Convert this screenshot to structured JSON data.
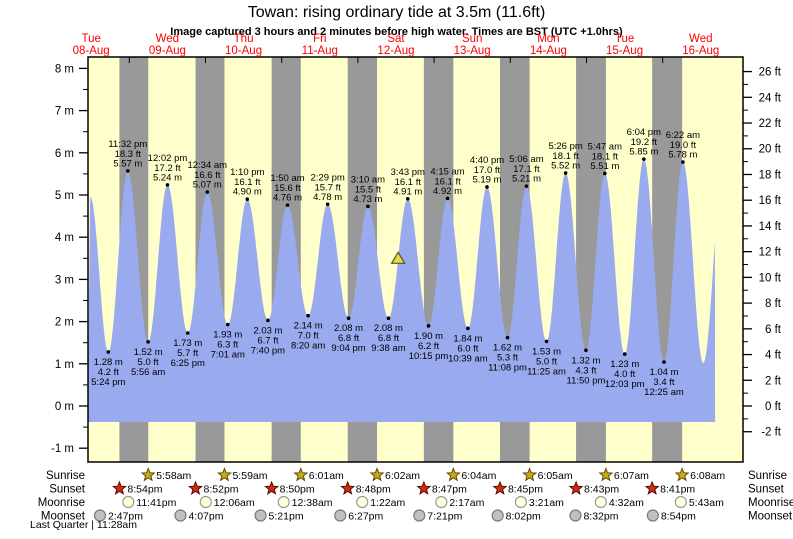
{
  "title": "Towan: rising  ordinary tide at 3.5m (11.6ft)",
  "subtitle": "Image captured 3 hours and 2 minutes before high water. Times are BST (UTC +1.0hrs)",
  "days": [
    {
      "day": "Tue",
      "date": "08-Aug"
    },
    {
      "day": "Wed",
      "date": "09-Aug"
    },
    {
      "day": "Thu",
      "date": "10-Aug"
    },
    {
      "day": "Fri",
      "date": "11-Aug"
    },
    {
      "day": "Sat",
      "date": "12-Aug"
    },
    {
      "day": "Sun",
      "date": "13-Aug"
    },
    {
      "day": "Mon",
      "date": "14-Aug"
    },
    {
      "day": "Tue",
      "date": "15-Aug"
    },
    {
      "day": "Wed",
      "date": "16-Aug"
    }
  ],
  "chart_data": {
    "type": "area",
    "title": "Towan: rising  ordinary tide at 3.5m (11.6ft)",
    "ylabel_left": "meters",
    "ylabel_right": "feet",
    "ylim_m": [
      -1,
      8
    ],
    "ylim_ft": [
      -2,
      26
    ],
    "y_ticks_m": [
      "8 m",
      "7 m",
      "6 m",
      "5 m",
      "4 m",
      "3 m",
      "2 m",
      "1 m",
      "0 m",
      "-1 m"
    ],
    "y_tick_values_m": [
      8,
      7,
      6,
      5,
      4,
      3,
      2,
      1,
      0,
      -1
    ],
    "y_ticks_ft": [
      "26 ft",
      "24 ft",
      "22 ft",
      "20 ft",
      "18 ft",
      "16 ft",
      "14 ft",
      "12 ft",
      "10 ft",
      "8 ft",
      "6 ft",
      "4 ft",
      "2 ft",
      "0 ft",
      "-2 ft"
    ],
    "y_tick_values_ft": [
      26,
      24,
      22,
      20,
      18,
      16,
      14,
      12,
      10,
      8,
      6,
      4,
      2,
      0,
      -2
    ],
    "tide_events": [
      {
        "type": "low",
        "t": 17.4,
        "height_m": 1.28,
        "height_ft": 4.2,
        "time": "5:24 pm",
        "m_label": "1.28 m",
        "ft_label": "4.2 ft"
      },
      {
        "type": "high",
        "t": 23.533,
        "height_m": 5.57,
        "height_ft": 18.3,
        "time": "11:32 pm",
        "m_label": "5.57 m",
        "ft_label": "18.3 ft"
      },
      {
        "type": "low",
        "t": 29.933,
        "height_m": 1.52,
        "height_ft": 5.0,
        "time": "5:56 am",
        "m_label": "1.52 m",
        "ft_label": "5.0 ft"
      },
      {
        "type": "high",
        "t": 36.033,
        "height_m": 5.24,
        "height_ft": 17.2,
        "time": "12:02 pm",
        "m_label": "5.24 m",
        "ft_label": "17.2 ft"
      },
      {
        "type": "low",
        "t": 42.417,
        "height_m": 1.73,
        "height_ft": 5.7,
        "time": "6:25 pm",
        "m_label": "1.73 m",
        "ft_label": "5.7 ft"
      },
      {
        "type": "high",
        "t": 48.567,
        "height_m": 5.07,
        "height_ft": 16.6,
        "time": "12:34 am",
        "m_label": "5.07 m",
        "ft_label": "16.6 ft"
      },
      {
        "type": "low",
        "t": 55.017,
        "height_m": 1.93,
        "height_ft": 6.3,
        "time": "7:01 am",
        "m_label": "1.93 m",
        "ft_label": "6.3 ft"
      },
      {
        "type": "high",
        "t": 61.167,
        "height_m": 4.9,
        "height_ft": 16.1,
        "time": "1:10 pm",
        "m_label": "4.90 m",
        "ft_label": "16.1 ft"
      },
      {
        "type": "low",
        "t": 67.667,
        "height_m": 2.03,
        "height_ft": 6.7,
        "time": "7:40 pm",
        "m_label": "2.03 m",
        "ft_label": "6.7 ft"
      },
      {
        "type": "high",
        "t": 73.833,
        "height_m": 4.76,
        "height_ft": 15.6,
        "time": "1:50 am",
        "m_label": "4.76 m",
        "ft_label": "15.6 ft"
      },
      {
        "type": "low",
        "t": 80.333,
        "height_m": 2.14,
        "height_ft": 7.0,
        "time": "8:20 am",
        "m_label": "2.14 m",
        "ft_label": "7.0 ft"
      },
      {
        "type": "high",
        "t": 86.483,
        "height_m": 4.78,
        "height_ft": 15.7,
        "time": "2:29 pm",
        "m_label": "4.78 m",
        "ft_label": "15.7 ft"
      },
      {
        "type": "low",
        "t": 93.067,
        "height_m": 2.08,
        "height_ft": 6.8,
        "time": "9:04 pm",
        "m_label": "2.08 m",
        "ft_label": "6.8 ft"
      },
      {
        "type": "high",
        "t": 99.167,
        "height_m": 4.73,
        "height_ft": 15.5,
        "time": "3:10 am",
        "m_label": "4.73 m",
        "ft_label": "15.5 ft"
      },
      {
        "type": "low",
        "t": 105.633,
        "height_m": 2.08,
        "height_ft": 6.8,
        "time": "9:38 am",
        "m_label": "2.08 m",
        "ft_label": "6.8 ft"
      },
      {
        "type": "high",
        "t": 111.717,
        "height_m": 4.91,
        "height_ft": 16.1,
        "time": "3:43 pm",
        "m_label": "4.91 m",
        "ft_label": "16.1 ft"
      },
      {
        "type": "low",
        "t": 118.25,
        "height_m": 1.9,
        "height_ft": 6.2,
        "time": "10:15 pm",
        "m_label": "1.90 m",
        "ft_label": "6.2 ft"
      },
      {
        "type": "high",
        "t": 124.25,
        "height_m": 4.92,
        "height_ft": 16.1,
        "time": "4:15 am",
        "m_label": "4.92 m",
        "ft_label": "16.1 ft"
      },
      {
        "type": "low",
        "t": 130.65,
        "height_m": 1.84,
        "height_ft": 6.0,
        "time": "10:39 am",
        "m_label": "1.84 m",
        "ft_label": "6.0 ft"
      },
      {
        "type": "high",
        "t": 136.667,
        "height_m": 5.19,
        "height_ft": 17.0,
        "time": "4:40 pm",
        "m_label": "5.19 m",
        "ft_label": "17.0 ft"
      },
      {
        "type": "low",
        "t": 143.133,
        "height_m": 1.62,
        "height_ft": 5.3,
        "time": "11:08 pm",
        "m_label": "1.62 m",
        "ft_label": "5.3 ft"
      },
      {
        "type": "high",
        "t": 149.1,
        "height_m": 5.21,
        "height_ft": 17.1,
        "time": "5:06 am",
        "m_label": "5.21 m",
        "ft_label": "17.1 ft"
      },
      {
        "type": "low",
        "t": 155.417,
        "height_m": 1.53,
        "height_ft": 5.0,
        "time": "11:25 am",
        "m_label": "1.53 m",
        "ft_label": "5.0 ft"
      },
      {
        "type": "high",
        "t": 161.433,
        "height_m": 5.52,
        "height_ft": 18.1,
        "time": "5:26 pm",
        "m_label": "5.52 m",
        "ft_label": "18.1 ft"
      },
      {
        "type": "low",
        "t": 167.833,
        "height_m": 1.32,
        "height_ft": 4.3,
        "time": "11:50 pm",
        "m_label": "1.32 m",
        "ft_label": "4.3 ft"
      },
      {
        "type": "high",
        "t": 173.783,
        "height_m": 5.51,
        "height_ft": 18.1,
        "time": "5:47 am",
        "m_label": "5.51 m",
        "ft_label": "18.1 ft"
      },
      {
        "type": "low",
        "t": 180.05,
        "height_m": 1.23,
        "height_ft": 4.0,
        "time": "12:03 pm",
        "m_label": "1.23 m",
        "ft_label": "4.0 ft"
      },
      {
        "type": "high",
        "t": 186.067,
        "height_m": 5.85,
        "height_ft": 19.2,
        "time": "6:04 pm",
        "m_label": "5.85 m",
        "ft_label": "19.2 ft"
      },
      {
        "type": "low",
        "t": 192.417,
        "height_m": 1.04,
        "height_ft": 3.4,
        "time": "12:25 am",
        "m_label": "1.04 m",
        "ft_label": "3.4 ft"
      },
      {
        "type": "high",
        "t": 198.367,
        "height_m": 5.78,
        "height_ft": 19.0,
        "time": "6:22 am",
        "m_label": "5.78 m",
        "ft_label": "19.0 ft"
      }
    ],
    "hidden_events": [
      {
        "type": "low",
        "t": 10.95,
        "height_m": 0.6
      },
      {
        "type": "high",
        "t": 11.75,
        "height_m": 4.95
      },
      {
        "type": "low",
        "t": 204.78,
        "height_m": 1.02
      },
      {
        "type": "high",
        "t": 211.0,
        "height_m": 5.5
      }
    ],
    "draw_range": [
      11.04,
      208.5
    ],
    "current_marker": {
      "t": 108.68,
      "height_m": 3.5
    }
  },
  "astro": {
    "rows": [
      {
        "label": "Sunrise",
        "icon": "sunrise-star",
        "events": [
          {
            "t": 29.967,
            "time": "5:58am"
          },
          {
            "t": 53.983,
            "time": "5:59am"
          },
          {
            "t": 78.017,
            "time": "6:01am"
          },
          {
            "t": 102.033,
            "time": "6:02am"
          },
          {
            "t": 126.067,
            "time": "6:04am"
          },
          {
            "t": 150.083,
            "time": "6:05am"
          },
          {
            "t": 174.117,
            "time": "6:07am"
          },
          {
            "t": 198.133,
            "time": "6:08am"
          }
        ]
      },
      {
        "label": "Sunset",
        "icon": "sunset-star",
        "events": [
          {
            "t": 20.9,
            "time": "8:54pm"
          },
          {
            "t": 44.867,
            "time": "8:52pm"
          },
          {
            "t": 68.833,
            "time": "8:50pm"
          },
          {
            "t": 92.8,
            "time": "8:48pm"
          },
          {
            "t": 116.783,
            "time": "8:47pm"
          },
          {
            "t": 140.75,
            "time": "8:45pm"
          },
          {
            "t": 164.717,
            "time": "8:43pm"
          },
          {
            "t": 188.683,
            "time": "8:41pm"
          }
        ]
      },
      {
        "label": "Moonrise",
        "icon": "moonrise-circle",
        "events": [
          {
            "t": 23.683,
            "time": "11:41pm"
          },
          {
            "t": 48.1,
            "time": "12:06am"
          },
          {
            "t": 72.633,
            "time": "12:38am"
          },
          {
            "t": 97.367,
            "time": "1:22am"
          },
          {
            "t": 122.283,
            "time": "2:17am"
          },
          {
            "t": 147.35,
            "time": "3:21am"
          },
          {
            "t": 172.533,
            "time": "4:32am"
          },
          {
            "t": 197.717,
            "time": "5:43am"
          }
        ]
      },
      {
        "label": "Moonset",
        "icon": "moonset-circle",
        "events": [
          {
            "t": 14.783,
            "time": "2:47pm"
          },
          {
            "t": 40.117,
            "time": "4:07pm"
          },
          {
            "t": 65.35,
            "time": "5:21pm"
          },
          {
            "t": 90.45,
            "time": "6:27pm"
          },
          {
            "t": 115.35,
            "time": "7:21pm"
          },
          {
            "t": 140.033,
            "time": "8:02pm"
          },
          {
            "t": 164.533,
            "time": "8:32pm"
          },
          {
            "t": 188.9,
            "time": "8:54pm"
          }
        ]
      }
    ],
    "moon_phase": "Last Quarter | 11:28am"
  },
  "colors": {
    "day_bg": "#ffffcc",
    "night_bg": "#999999",
    "tide_fill": "#99aaee",
    "date_label": "#ff0000",
    "axis": "#000000",
    "marker_fill": "#e2dc50",
    "marker_stroke": "#55551e",
    "sunrise_star": "#c9a918",
    "sunset_star": "#d42a10",
    "moonrise_circle": "#ffffd8",
    "moonset_circle": "#c0c0c0"
  }
}
